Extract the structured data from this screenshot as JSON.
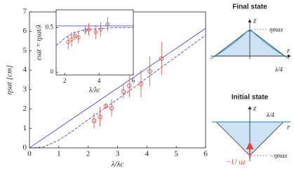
{
  "chart_data": [
    {
      "type": "scatter",
      "xlabel": "λ/λc",
      "ylabel": "ηsat [cm]",
      "xlim": [
        0,
        6
      ],
      "ylim": [
        0,
        7
      ],
      "xticks": [
        0,
        1,
        2,
        3,
        4,
        5,
        6
      ],
      "yticks": [
        0,
        1,
        2,
        3,
        4,
        5,
        6,
        7
      ],
      "x": [
        2.2,
        2.4,
        2.6,
        2.8,
        3.2,
        3.4,
        3.8,
        4.1,
        4.5
      ],
      "values": [
        1.4,
        1.6,
        2.15,
        2.05,
        2.9,
        3.2,
        3.3,
        3.95,
        4.6
      ],
      "errors": [
        0.4,
        0.5,
        0.15,
        0.45,
        0.35,
        0.6,
        0.7,
        0.75,
        0.85
      ],
      "color": "#e8433a",
      "curves": [
        {
          "x": [
            0,
            6
          ],
          "values": [
            0,
            6.15
          ],
          "color": "#4a4ae0",
          "dashed": false
        },
        {
          "x": [
            0,
            0.5,
            1,
            1.5,
            2,
            3,
            4,
            5,
            6
          ],
          "values": [
            0,
            0.05,
            0.4,
            0.9,
            1.45,
            2.5,
            3.6,
            4.7,
            5.8
          ],
          "color": "#4a4ae0",
          "dashed": true
        }
      ]
    },
    {
      "type": "scatter",
      "xlabel": "λ/λc",
      "ylabel": "εsat = ηsat/λ",
      "xlim": [
        1.5,
        6
      ],
      "ylim": [
        -0.03,
        0.7
      ],
      "xticks": [
        2,
        4,
        6
      ],
      "yticks": [
        0,
        0.5
      ],
      "x": [
        2.2,
        2.4,
        2.6,
        2.8,
        3.2,
        3.4,
        3.8,
        4.1,
        4.5
      ],
      "values": [
        0.34,
        0.37,
        0.41,
        0.39,
        0.47,
        0.48,
        0.45,
        0.48,
        0.54
      ],
      "errors": [
        0.08,
        0.08,
        0.05,
        0.07,
        0.05,
        0.07,
        0.08,
        0.08,
        0.08
      ],
      "color": "#e8433a",
      "curves": [
        {
          "x": [
            1.5,
            6
          ],
          "values": [
            0.52,
            0.52
          ],
          "color": "#4a4ae0",
          "dashed": false
        },
        {
          "x": [
            1.5,
            2,
            2.5,
            3,
            4,
            5,
            6
          ],
          "values": [
            0.3,
            0.38,
            0.44,
            0.47,
            0.49,
            0.5,
            0.5
          ],
          "color": "#4a4ae0",
          "dashed": true
        }
      ]
    }
  ],
  "diagram": {
    "final": {
      "title": "Final state",
      "z": "z",
      "eta": "ηmax",
      "r": "r",
      "quarter": "λ/4"
    },
    "initial": {
      "title": "Initial state",
      "z": "z",
      "quarter": "λ/4",
      "r": "r",
      "velocity": "−U uz",
      "eta": "−ηmax"
    }
  }
}
